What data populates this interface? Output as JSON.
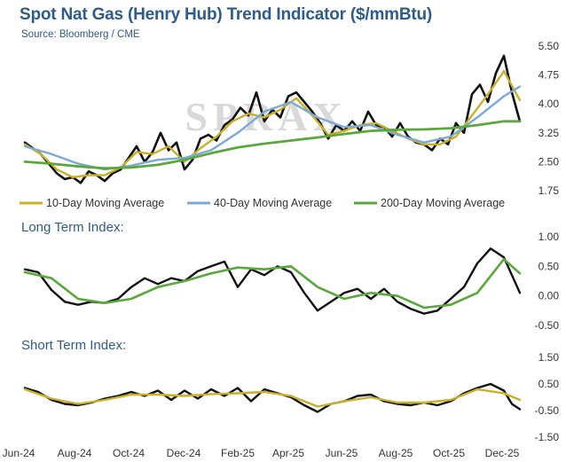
{
  "header": {
    "title": "Spot Nat Gas (Henry Hub) Trend Indicator ($/mmBtu)",
    "subtitle": "Source: Bloomberg / CME",
    "watermark": "SPRAX"
  },
  "colors": {
    "price": "#111111",
    "ma10": "#c9b026",
    "ma40": "#7aaad6",
    "ma200": "#5aa83c",
    "title": "#2e5c88",
    "long_term_signal": "#5aa83c",
    "short_term_signal": "#c9b026"
  },
  "chart_data": [
    {
      "type": "line",
      "panel": "price",
      "title": "Spot Nat Gas (Henry Hub) Trend Indicator ($/mmBtu)",
      "subtitle": "Source: Bloomberg / CME",
      "x_ticks": [
        "Jun-24",
        "Aug-24",
        "Oct-24",
        "Dec-24",
        "Feb-25",
        "Apr-25",
        "Jun-25",
        "Aug-25",
        "Oct-25",
        "Dec-25"
      ],
      "y_ticks": [
        "5.50",
        "4.75",
        "4.00",
        "3.25",
        "2.50",
        "1.75"
      ],
      "ylim": [
        1.75,
        5.5
      ],
      "legend": {
        "position": "bottom",
        "entries": [
          "10-Day Moving Average",
          "40-Day Moving Average",
          "200-Day Moving Average"
        ]
      },
      "series": [
        {
          "key": "price",
          "color": "#111111",
          "width": 2.6,
          "x": [
            0.0,
            0.3,
            0.6,
            0.9,
            1.2,
            1.5,
            1.8,
            2.1,
            2.4,
            2.7,
            3.0,
            3.3,
            3.6,
            3.9,
            4.2,
            4.5,
            4.8,
            5.1,
            5.4,
            5.7,
            6.0,
            6.3,
            6.6,
            6.9,
            7.2,
            7.5,
            7.8,
            8.1,
            8.4,
            8.7,
            9.0,
            9.3,
            9.6,
            9.9,
            10.2,
            10.5,
            10.8,
            11.1,
            11.4,
            11.7,
            12.0,
            12.3,
            12.6,
            12.9,
            13.2,
            13.5,
            13.8,
            14.1,
            14.4,
            14.7,
            15.0,
            15.3,
            15.6,
            15.9,
            16.2,
            16.5,
            16.8,
            17.1,
            17.4,
            17.7,
            18.0,
            18.3,
            18.6
          ],
          "y": [
            3.0,
            2.85,
            2.7,
            2.45,
            2.2,
            2.05,
            2.1,
            1.95,
            2.25,
            2.15,
            2.0,
            2.2,
            2.3,
            2.6,
            2.9,
            2.5,
            2.75,
            3.25,
            2.8,
            3.0,
            2.3,
            2.55,
            3.1,
            3.2,
            3.05,
            3.45,
            3.6,
            3.9,
            3.7,
            4.3,
            3.55,
            3.85,
            3.65,
            4.2,
            4.3,
            4.05,
            3.8,
            3.5,
            3.1,
            3.45,
            3.3,
            3.55,
            3.3,
            3.8,
            3.45,
            3.4,
            3.15,
            3.5,
            3.15,
            3.0,
            2.95,
            2.8,
            3.1,
            2.95,
            3.5,
            3.25,
            4.25,
            4.5,
            4.05,
            4.8,
            5.25,
            4.3,
            3.55
          ]
        },
        {
          "key": "ma10",
          "color": "#c9b026",
          "width": 2.4,
          "x": [
            0.0,
            0.6,
            1.2,
            1.8,
            2.4,
            3.0,
            3.6,
            4.2,
            4.8,
            5.4,
            6.0,
            6.6,
            7.2,
            7.8,
            8.4,
            9.0,
            9.6,
            10.2,
            10.8,
            11.4,
            12.0,
            12.6,
            13.2,
            13.8,
            14.4,
            15.0,
            15.6,
            16.2,
            16.8,
            17.4,
            18.0,
            18.6
          ],
          "y": [
            2.95,
            2.7,
            2.3,
            2.1,
            2.15,
            2.15,
            2.35,
            2.75,
            2.7,
            2.9,
            2.5,
            2.85,
            3.15,
            3.55,
            3.75,
            3.65,
            3.85,
            4.15,
            3.7,
            3.2,
            3.3,
            3.45,
            3.5,
            3.3,
            3.1,
            2.95,
            2.95,
            3.15,
            3.7,
            4.25,
            4.85,
            4.1
          ]
        },
        {
          "key": "ma40",
          "color": "#7aaad6",
          "width": 2.4,
          "x": [
            0.0,
            1.0,
            2.0,
            3.0,
            4.0,
            5.0,
            6.0,
            7.0,
            8.0,
            9.0,
            10.0,
            11.0,
            12.0,
            13.0,
            14.0,
            15.0,
            16.0,
            17.0,
            18.0,
            18.6
          ],
          "y": [
            2.9,
            2.7,
            2.45,
            2.3,
            2.4,
            2.55,
            2.6,
            2.8,
            3.25,
            3.8,
            4.05,
            3.65,
            3.4,
            3.45,
            3.2,
            3.0,
            3.15,
            3.65,
            4.2,
            4.45
          ]
        },
        {
          "key": "ma200",
          "color": "#5aa83c",
          "width": 2.8,
          "x": [
            0.0,
            1.0,
            2.0,
            3.0,
            4.0,
            5.0,
            6.0,
            7.0,
            8.0,
            9.0,
            10.0,
            11.0,
            12.0,
            13.0,
            14.0,
            15.0,
            16.0,
            17.0,
            18.0,
            18.6
          ],
          "y": [
            2.5,
            2.45,
            2.38,
            2.33,
            2.35,
            2.42,
            2.55,
            2.72,
            2.87,
            2.97,
            3.05,
            3.13,
            3.22,
            3.3,
            3.33,
            3.34,
            3.37,
            3.45,
            3.55,
            3.55
          ]
        }
      ]
    },
    {
      "type": "line",
      "panel": "long_term",
      "title": "Long Term Index:",
      "y_ticks": [
        "1.00",
        "0.50",
        "0.00",
        "-0.50"
      ],
      "ylim": [
        -0.5,
        1.0
      ],
      "series": [
        {
          "key": "index",
          "color": "#111111",
          "width": 2.4,
          "x": [
            0.0,
            0.5,
            1.0,
            1.5,
            2.0,
            2.5,
            3.0,
            3.5,
            4.0,
            4.5,
            5.0,
            5.5,
            6.0,
            6.5,
            7.0,
            7.5,
            8.0,
            8.5,
            9.0,
            9.5,
            10.0,
            10.5,
            11.0,
            11.5,
            12.0,
            12.5,
            13.0,
            13.5,
            14.0,
            14.5,
            15.0,
            15.5,
            16.0,
            16.5,
            17.0,
            17.5,
            18.0,
            18.6
          ],
          "y": [
            0.45,
            0.4,
            0.1,
            -0.1,
            -0.15,
            -0.1,
            -0.12,
            -0.05,
            0.15,
            0.3,
            0.2,
            0.3,
            0.25,
            0.42,
            0.5,
            0.58,
            0.15,
            0.45,
            0.35,
            0.5,
            0.4,
            0.05,
            -0.25,
            -0.1,
            0.05,
            0.12,
            -0.05,
            0.12,
            -0.1,
            -0.22,
            -0.3,
            -0.25,
            -0.05,
            0.15,
            0.55,
            0.8,
            0.65,
            0.05
          ]
        },
        {
          "key": "signal",
          "color": "#5aa83c",
          "width": 2.6,
          "x": [
            0.0,
            1.0,
            2.0,
            3.0,
            4.0,
            5.0,
            6.0,
            7.0,
            8.0,
            9.0,
            10.0,
            11.0,
            12.0,
            13.0,
            14.0,
            15.0,
            16.0,
            17.0,
            18.0,
            18.6
          ],
          "y": [
            0.4,
            0.3,
            -0.05,
            -0.12,
            -0.05,
            0.15,
            0.25,
            0.38,
            0.48,
            0.45,
            0.5,
            0.15,
            -0.05,
            0.05,
            0.0,
            -0.2,
            -0.15,
            0.05,
            0.62,
            0.38
          ]
        }
      ]
    },
    {
      "type": "line",
      "panel": "short_term",
      "title": "Short Term Index:",
      "y_ticks": [
        "1.50",
        "0.50",
        "-0.50",
        "-1.50"
      ],
      "ylim": [
        -1.5,
        1.5
      ],
      "series": [
        {
          "key": "index",
          "color": "#111111",
          "width": 2.4,
          "x": [
            0.0,
            0.5,
            1.0,
            1.5,
            2.0,
            2.5,
            3.0,
            3.5,
            4.0,
            4.5,
            5.0,
            5.5,
            6.0,
            6.5,
            7.0,
            7.5,
            8.0,
            8.5,
            9.0,
            9.5,
            10.0,
            10.5,
            11.0,
            11.5,
            12.0,
            12.5,
            13.0,
            13.5,
            14.0,
            14.5,
            15.0,
            15.5,
            16.0,
            16.5,
            17.0,
            17.5,
            18.0,
            18.3,
            18.6
          ],
          "y": [
            0.35,
            0.2,
            -0.1,
            -0.25,
            -0.3,
            -0.2,
            -0.05,
            0.05,
            0.2,
            0.05,
            0.25,
            -0.1,
            0.25,
            -0.05,
            0.3,
            0.05,
            0.35,
            -0.15,
            0.3,
            0.15,
            0.0,
            -0.3,
            -0.55,
            -0.25,
            -0.15,
            0.05,
            0.1,
            -0.15,
            -0.25,
            -0.3,
            -0.2,
            -0.3,
            -0.15,
            0.15,
            0.35,
            0.5,
            0.25,
            -0.25,
            -0.45
          ]
        },
        {
          "key": "signal",
          "color": "#c9b026",
          "width": 2.4,
          "x": [
            0.0,
            1.0,
            2.0,
            3.0,
            4.0,
            5.0,
            6.0,
            7.0,
            8.0,
            9.0,
            10.0,
            11.0,
            12.0,
            13.0,
            14.0,
            15.0,
            16.0,
            17.0,
            18.0,
            18.6
          ],
          "y": [
            0.3,
            -0.05,
            -0.25,
            -0.1,
            0.1,
            0.1,
            0.05,
            0.12,
            0.15,
            0.2,
            0.05,
            -0.35,
            -0.15,
            0.0,
            -0.2,
            -0.2,
            -0.1,
            0.3,
            0.15,
            -0.1
          ]
        }
      ]
    }
  ]
}
